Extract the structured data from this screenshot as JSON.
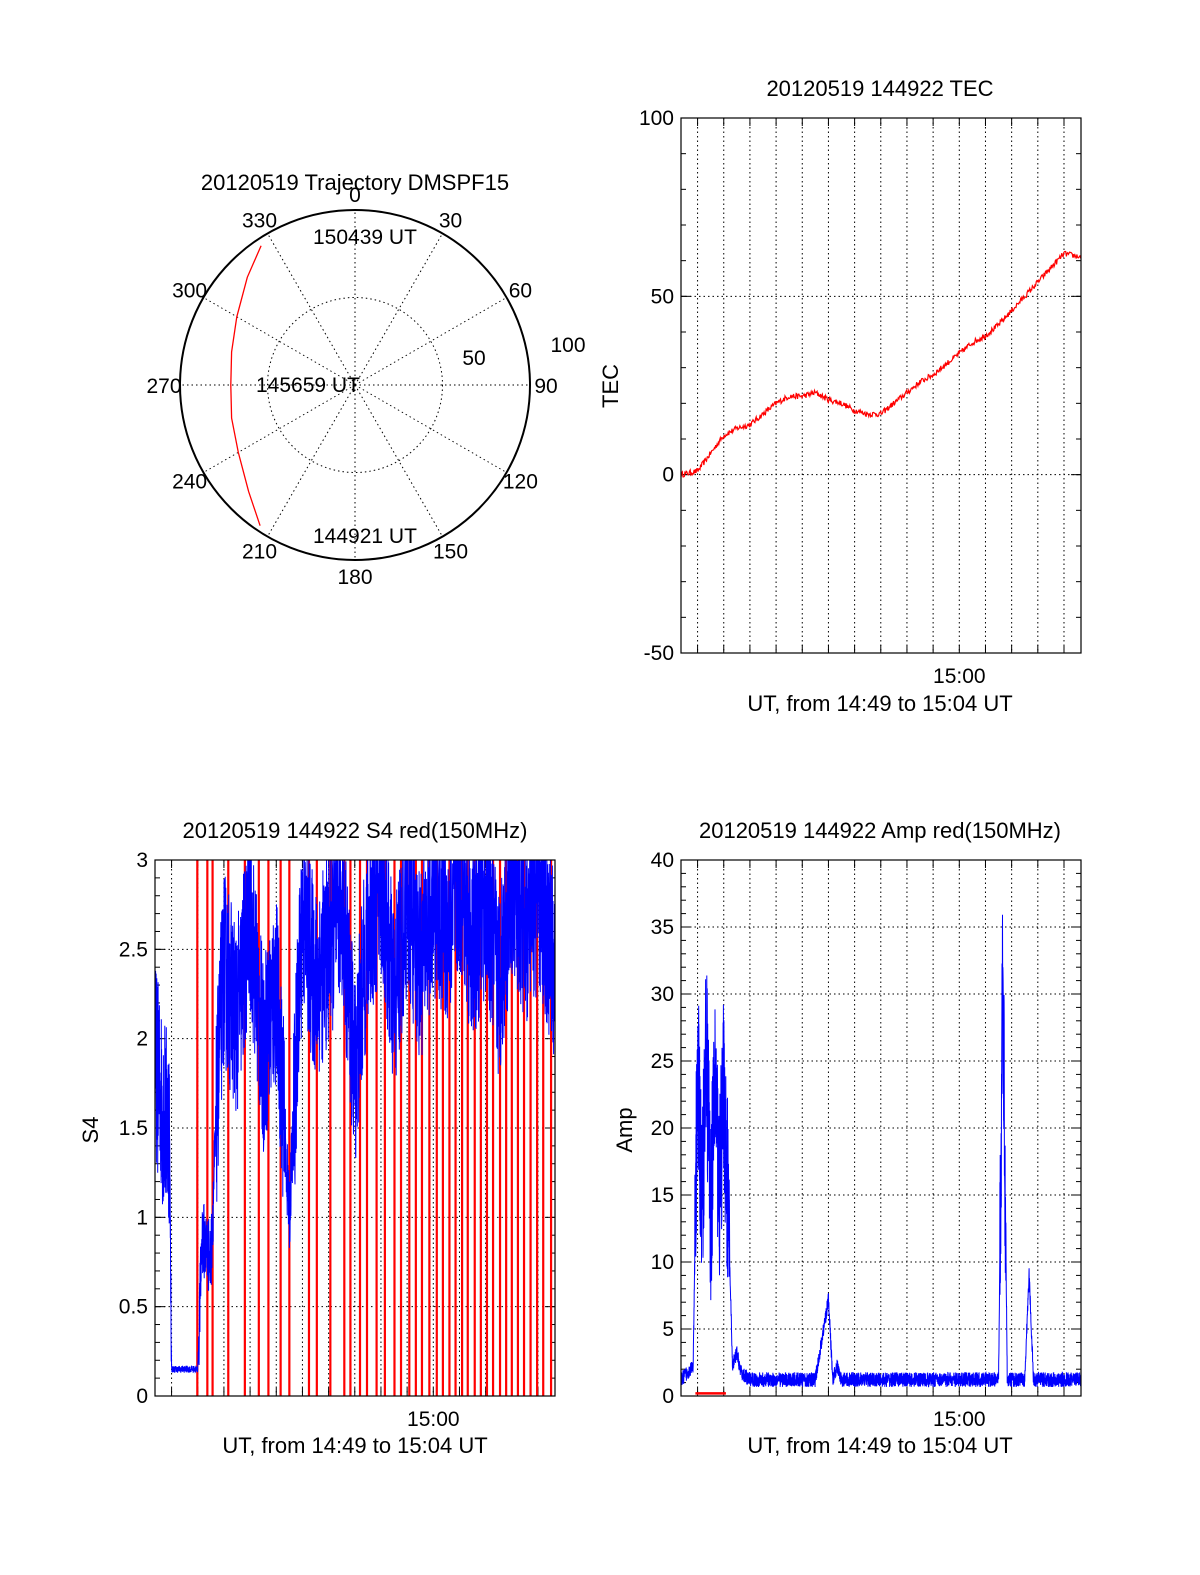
{
  "colors": {
    "red": "#ff0000",
    "blue": "#0000ff",
    "axis": "#000000"
  },
  "chart_data": [
    {
      "type": "polar",
      "title": "20120519 Trajectory DMSPF15",
      "angle_ticks": [
        "0",
        "30",
        "60",
        "90",
        "120",
        "150",
        "180",
        "210",
        "240",
        "270",
        "300",
        "330"
      ],
      "radial_tick_labels": [
        "50",
        "100"
      ],
      "center_label": "145659 UT",
      "start_label": "144921 UT",
      "end_label": "150439 UT",
      "series": [
        {
          "color": "red",
          "azimuth": [
            214,
            225,
            240,
            255,
            270,
            285,
            300,
            315,
            326
          ],
          "zenith": [
            97,
            86,
            77,
            73,
            71,
            73,
            78,
            87,
            96
          ]
        }
      ]
    },
    {
      "type": "line",
      "title": "20120519 144922 TEC",
      "xlabel": "UT, from 14:49 to 15:04 UT",
      "ylabel": "TEC",
      "xlim": [
        "14:49:22",
        "15:04:39"
      ],
      "ylim": [
        -50,
        100
      ],
      "y_ticks": [
        "100",
        "50",
        "0",
        "-50"
      ],
      "x_ticks": [
        "15:00"
      ],
      "grid": true,
      "series": [
        {
          "color": "red",
          "x": [
            "14:49:22",
            "14:50:00",
            "14:50:30",
            "14:51:00",
            "14:51:30",
            "14:52:00",
            "14:52:30",
            "14:53:00",
            "14:53:30",
            "14:54:00",
            "14:54:30",
            "14:55:00",
            "14:55:30",
            "14:56:00",
            "14:56:30",
            "14:57:00",
            "14:57:30",
            "14:58:00",
            "14:58:30",
            "14:59:00",
            "14:59:30",
            "15:00:00",
            "15:00:30",
            "15:01:00",
            "15:01:30",
            "15:02:00",
            "15:02:30",
            "15:03:00",
            "15:03:30",
            "15:04:00",
            "15:04:39"
          ],
          "y": [
            0,
            1,
            6,
            11,
            13,
            14,
            17,
            20,
            22,
            22,
            23,
            21,
            20,
            18,
            17,
            17,
            20,
            23,
            26,
            28,
            31,
            34,
            37,
            39,
            42,
            46,
            50,
            54,
            58,
            62,
            61
          ]
        }
      ]
    },
    {
      "type": "line",
      "title": "20120519 144922 S4 red(150MHz)",
      "xlabel": "UT, from 14:49 to 15:04 UT",
      "ylabel": "S4",
      "xlim": [
        "14:49:22",
        "15:04:39"
      ],
      "ylim": [
        0,
        3
      ],
      "y_ticks": [
        "3",
        "2.5",
        "2",
        "1.5",
        "1",
        "0.5",
        "0"
      ],
      "x_ticks": [
        "15:00"
      ],
      "grid": true,
      "series": [
        {
          "color": "blue",
          "x": [
            "14:49:22",
            "14:49:40",
            "14:49:55",
            "14:50:00",
            "14:50:30",
            "14:51:00",
            "14:51:10",
            "14:51:30",
            "14:51:50",
            "14:52:00",
            "14:52:30",
            "14:53:00",
            "14:53:30",
            "14:54:00",
            "14:54:30",
            "14:55:00",
            "14:55:30",
            "14:56:00",
            "14:56:30",
            "14:57:00",
            "14:57:30",
            "14:58:00",
            "14:58:30",
            "14:59:00",
            "14:59:30",
            "15:00:00",
            "15:00:30",
            "15:01:00",
            "15:01:30",
            "15:02:00",
            "15:02:30",
            "15:03:00",
            "15:03:30",
            "15:04:00",
            "15:04:39"
          ],
          "y": [
            1.9,
            1.6,
            1.5,
            0.15,
            0.15,
            0.15,
            0.9,
            0.75,
            2.0,
            2.4,
            2.1,
            2.7,
            1.9,
            2.3,
            1.0,
            2.7,
            2.3,
            2.5,
            2.8,
            1.8,
            2.6,
            2.9,
            2.2,
            2.8,
            2.4,
            2.8,
            2.6,
            2.9,
            2.5,
            2.8,
            2.3,
            2.9,
            2.6,
            2.8,
            2.4
          ]
        },
        {
          "color": "red",
          "spikes_x": [
            "14:50:59",
            "14:51:22",
            "14:51:34",
            "14:52:10",
            "14:52:48",
            "14:53:20",
            "14:53:42",
            "14:54:10",
            "14:54:30",
            "14:55:15",
            "14:55:33",
            "14:56:04",
            "14:56:36",
            "14:56:50",
            "14:57:12",
            "14:57:28",
            "14:57:50",
            "14:58:09",
            "14:58:31",
            "14:58:46",
            "14:59:05",
            "14:59:20",
            "14:59:34",
            "14:59:51",
            "15:00:08",
            "15:00:22",
            "15:00:37",
            "15:00:51",
            "15:01:06",
            "15:01:19",
            "15:01:35",
            "15:01:49",
            "15:02:03",
            "15:02:17",
            "15:02:33",
            "15:02:47",
            "15:03:00",
            "15:03:14",
            "15:03:28",
            "15:03:43",
            "15:03:58",
            "15:04:12",
            "15:04:30"
          ],
          "spike_values": [
            3,
            3,
            3,
            3,
            3,
            3,
            3,
            3,
            3,
            3,
            3,
            3,
            3,
            3,
            3,
            3,
            3,
            3,
            3,
            3,
            3,
            3,
            3,
            3,
            3,
            3,
            3,
            3,
            3,
            3,
            3,
            3,
            3,
            3,
            3,
            3,
            3,
            3,
            3,
            3,
            3,
            3,
            3
          ]
        }
      ]
    },
    {
      "type": "line",
      "title": "20120519 144922 Amp red(150MHz)",
      "xlabel": "UT, from 14:49 to 15:04 UT",
      "ylabel": "Amp",
      "xlim": [
        "14:49:22",
        "15:04:39"
      ],
      "ylim": [
        0,
        40
      ],
      "y_ticks": [
        "40",
        "35",
        "30",
        "25",
        "20",
        "15",
        "10",
        "5",
        "0"
      ],
      "x_ticks": [
        "15:00"
      ],
      "grid": true,
      "series": [
        {
          "color": "blue",
          "x": [
            "14:49:22",
            "14:49:50",
            "14:50:00",
            "14:50:10",
            "14:50:20",
            "14:50:30",
            "14:50:40",
            "14:50:50",
            "14:51:00",
            "14:51:10",
            "14:51:20",
            "14:51:30",
            "14:51:40",
            "14:52:00",
            "14:53:00",
            "14:54:00",
            "14:54:30",
            "14:55:00",
            "14:55:10",
            "14:55:20",
            "14:55:30",
            "14:56:00",
            "14:57:00",
            "14:58:00",
            "14:59:00",
            "15:00:00",
            "15:01:00",
            "15:01:30",
            "15:01:40",
            "15:01:50",
            "15:02:30",
            "15:02:40",
            "15:02:50",
            "15:03:30",
            "15:04:39"
          ],
          "y": [
            1,
            2,
            25,
            14,
            27,
            13,
            24,
            15,
            23,
            14,
            2,
            3,
            1.5,
            1,
            1,
            1,
            1,
            7,
            1,
            2,
            1,
            1,
            1,
            1,
            1,
            1,
            1,
            1,
            32,
            1,
            1,
            9,
            1,
            1,
            1
          ]
        },
        {
          "color": "red",
          "x": [
            "14:49:55",
            "14:51:05"
          ],
          "y": [
            0.2,
            0.2
          ]
        }
      ]
    }
  ]
}
